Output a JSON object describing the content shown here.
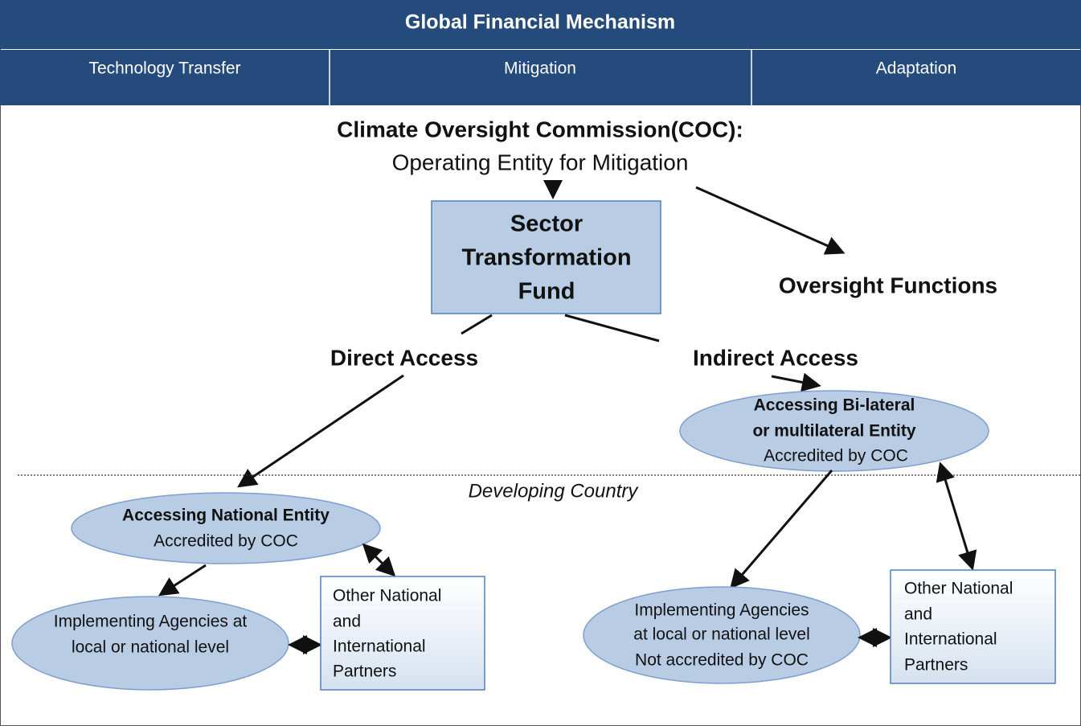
{
  "header": {
    "title": "Global Financial Mechanism",
    "tabs": [
      "Technology Transfer",
      "Mitigation",
      "Adaptation"
    ]
  },
  "coc": {
    "title": "Climate Oversight Commission(COC):",
    "subtitle": "Operating Entity for Mitigation"
  },
  "fund": {
    "lines": [
      "Sector",
      "Transformation",
      "Fund"
    ]
  },
  "oversight": "Oversight Functions",
  "direct_access": "Direct Access",
  "indirect_access": "Indirect Access",
  "boundary_label": "Developing Country",
  "bilateral_entity": {
    "title": [
      "Accessing Bi-lateral",
      "or multilateral Entity"
    ],
    "note": "Accredited by COC"
  },
  "national_entity": {
    "title": "Accessing National Entity",
    "note": "Accredited by COC"
  },
  "implementing_left": {
    "lines": [
      "Implementing Agencies at",
      "local or national level"
    ]
  },
  "implementing_right": {
    "lines": [
      "Implementing Agencies",
      "at local or national level",
      "Not accredited by COC"
    ]
  },
  "partners_left": {
    "lines": [
      "Other National",
      "and",
      "International",
      "Partners"
    ]
  },
  "partners_right": {
    "lines": [
      "Other National",
      "and",
      "International",
      "Partners"
    ]
  }
}
